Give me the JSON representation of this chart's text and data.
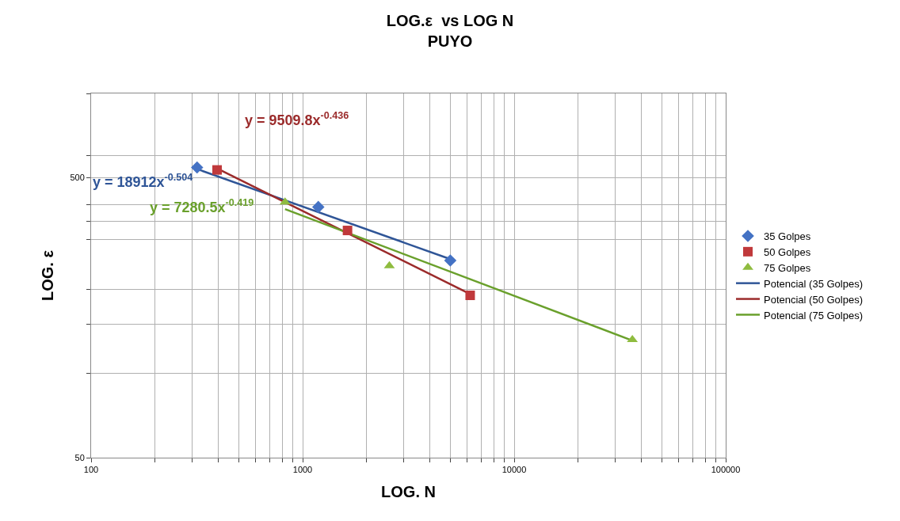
{
  "chart_data": {
    "type": "scatter",
    "title": "LOG.ε  vs LOG N",
    "subtitle": "PUYO",
    "xlabel": "LOG. N",
    "ylabel": "LOG. ε",
    "log": "xy",
    "grid": true,
    "legend": "right",
    "xlim": [
      100,
      100000
    ],
    "xticks": [
      100,
      {
        "value": 200,
        "label": null
      },
      {
        "value": 300,
        "label": null
      },
      {
        "value": 400,
        "label": null
      },
      {
        "value": 500,
        "label": null
      },
      {
        "value": 600,
        "label": null
      },
      {
        "value": 700,
        "label": null
      },
      {
        "value": 800,
        "label": null
      },
      {
        "value": 900,
        "label": null
      },
      1000,
      {
        "value": 2000,
        "label": null
      },
      {
        "value": 3000,
        "label": null
      },
      {
        "value": 4000,
        "label": null
      },
      {
        "value": 5000,
        "label": null
      },
      {
        "value": 6000,
        "label": null
      },
      {
        "value": 7000,
        "label": null
      },
      {
        "value": 8000,
        "label": null
      },
      {
        "value": 9000,
        "label": null
      },
      10000,
      {
        "value": 20000,
        "label": null
      },
      {
        "value": 30000,
        "label": null
      },
      {
        "value": 40000,
        "label": null
      },
      {
        "value": 50000,
        "label": null
      },
      {
        "value": 60000,
        "label": null
      },
      {
        "value": 70000,
        "label": null
      },
      {
        "value": 80000,
        "label": null
      },
      {
        "value": 90000,
        "label": null
      },
      100000
    ],
    "ylim": [
      50,
      1000
    ],
    "yticks": [
      50,
      {
        "value": 100,
        "label": null
      },
      {
        "value": 150,
        "label": null
      },
      {
        "value": 200,
        "label": null
      },
      {
        "value": 300,
        "label": null
      },
      {
        "value": 350,
        "label": null
      },
      {
        "value": 400,
        "label": null
      },
      500,
      {
        "value": 600,
        "label": null
      },
      {
        "value": 1000,
        "label": null
      }
    ],
    "series": [
      {
        "name": "35 Golpes",
        "marker": "diamond",
        "color": "#4472c4",
        "x": [
          317,
          1186,
          4990
        ],
        "values": [
          544,
          393,
          253
        ]
      },
      {
        "name": "50 Golpes",
        "marker": "square",
        "color": "#c0393b",
        "x": [
          394,
          1630,
          6194
        ],
        "values": [
          533,
          324,
          190
        ]
      },
      {
        "name": "75 Golpes",
        "marker": "triangle",
        "color": "#8fbc3f",
        "x": [
          826,
          2570,
          36200
        ],
        "values": [
          409,
          242,
          132
        ]
      },
      {
        "name": "Potencial (35 Golpes)",
        "type": "line",
        "color": "#2f5597",
        "x": [
          317,
          4990
        ],
        "values": [
          537,
          256
        ]
      },
      {
        "name": "Potencial (50 Golpes)",
        "type": "line",
        "color": "#9b2b2b",
        "x": [
          385,
          6194
        ],
        "values": [
          544,
          192
        ]
      },
      {
        "name": "Potencial (75 Golpes)",
        "type": "line",
        "color": "#6aa02c",
        "x": [
          826,
          36200
        ],
        "values": [
          386,
          131
        ]
      }
    ],
    "annotations": [
      "y = 18912x$^{-0.504}$",
      "y = 9509.8x$^{-0.436}$",
      "y = 7280.5x$^{-0.419}$"
    ]
  }
}
